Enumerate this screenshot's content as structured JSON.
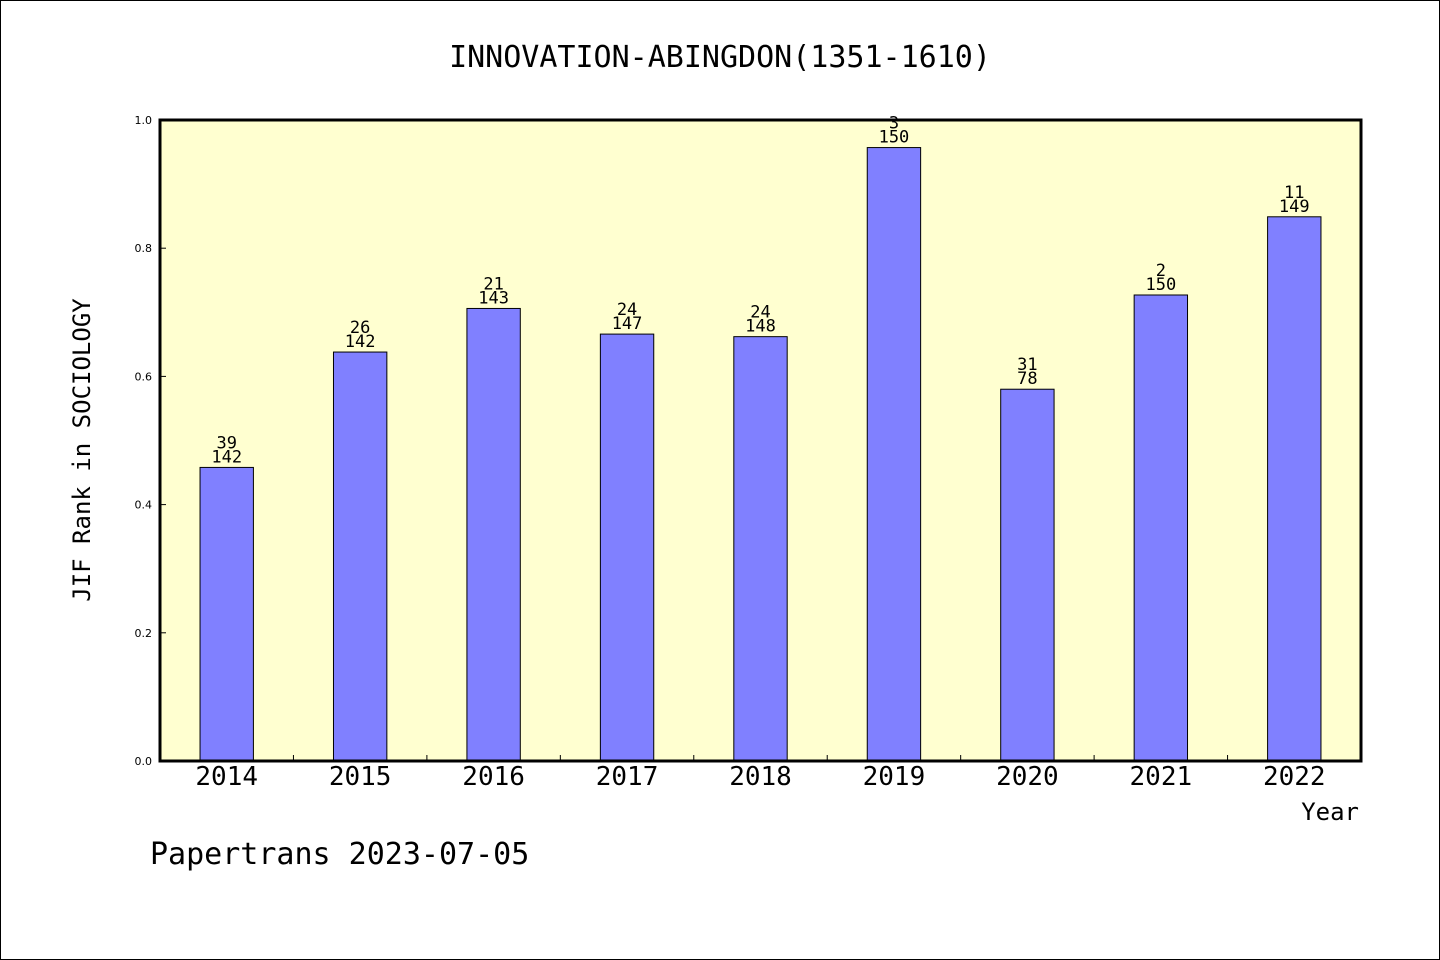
{
  "chart_data": {
    "type": "bar",
    "title": "INNOVATION-ABINGDON(1351-1610)",
    "xlabel": "Year",
    "ylabel": "JIF Rank in SOCIOLOGY",
    "footer": "Papertrans 2023-07-05",
    "categories": [
      "2014",
      "2015",
      "2016",
      "2017",
      "2018",
      "2019",
      "2020",
      "2021",
      "2022"
    ],
    "values": [
      0.458,
      0.638,
      0.706,
      0.666,
      0.662,
      0.957,
      0.58,
      0.727,
      0.849
    ],
    "rank_labels": [
      "39",
      "26",
      "21",
      "24",
      "24",
      "3",
      "31",
      "2",
      "11"
    ],
    "total_labels": [
      "142",
      "142",
      "143",
      "147",
      "148",
      "150",
      "78",
      "150",
      "149"
    ],
    "ylim": [
      0,
      1.0
    ],
    "yticks": [
      "0.0",
      "0.2",
      "0.4",
      "0.6",
      "0.8",
      "1.0"
    ],
    "grid": false,
    "colors": {
      "bar": "#8080ff",
      "plot_background": "#ffffd0",
      "axis": "#000000"
    }
  }
}
